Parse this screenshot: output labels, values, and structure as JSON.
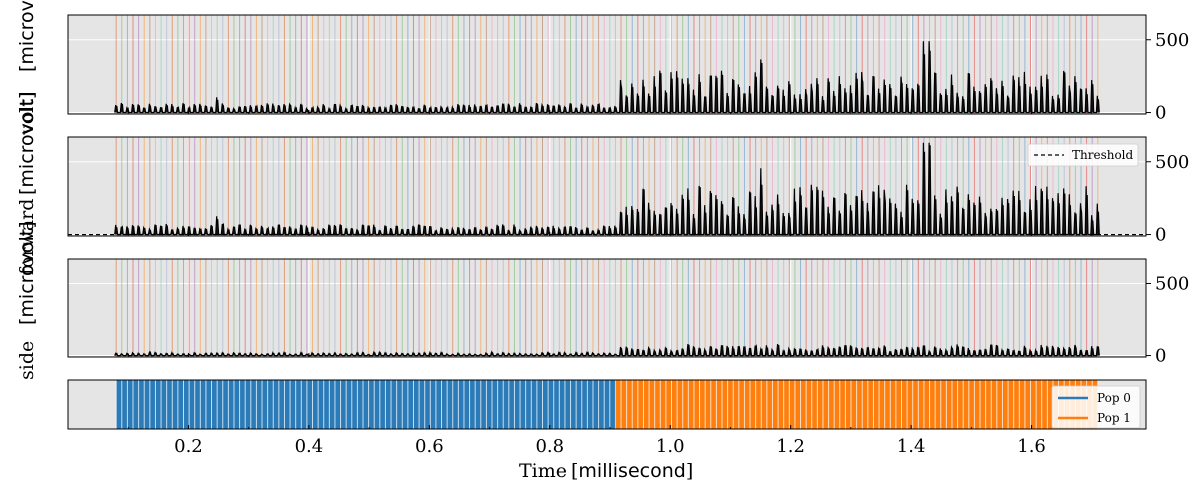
{
  "chart_data": {
    "type": "line",
    "x_axis": {
      "label_text": "Time",
      "label_unit": "millisecond",
      "range": [
        0.0,
        1.79
      ],
      "ticks": [
        0.2,
        0.4,
        0.6,
        0.8,
        1.0,
        1.2,
        1.4,
        1.6
      ],
      "tick_labels": [
        "0.2",
        "0.4",
        "0.6",
        "0.8",
        "1.0",
        "1.2",
        "1.4",
        "1.6"
      ]
    },
    "spike_train": {
      "start": 0.08,
      "end": 1.71,
      "count": 176,
      "population_boundary": 0.91
    },
    "panels": [
      {
        "id": "panel-1",
        "ylim": [
          -10,
          670
        ],
        "yticks": [
          0,
          500
        ],
        "ytick_labels": [
          "0",
          "500"
        ],
        "amplitude_pop0": 45,
        "amplitude_pop1": 200,
        "peaks": [
          {
            "x": 0.245,
            "y": 105
          },
          {
            "x": 1.425,
            "y": 490
          },
          {
            "x": 1.15,
            "y": 365
          }
        ],
        "threshold": null
      },
      {
        "id": "panel-2",
        "ylim": [
          -10,
          670
        ],
        "yticks": [
          0,
          500
        ],
        "ytick_labels": [
          "0",
          "500"
        ],
        "amplitude_pop0": 50,
        "amplitude_pop1": 240,
        "peaks": [
          {
            "x": 0.245,
            "y": 125
          },
          {
            "x": 1.425,
            "y": 630
          },
          {
            "x": 1.15,
            "y": 455
          }
        ],
        "threshold": 0
      },
      {
        "id": "panel-3",
        "ylim": [
          -10,
          670
        ],
        "yticks": [
          0,
          500
        ],
        "ytick_labels": [
          "0",
          "500"
        ],
        "amplitude_pop0": 15,
        "amplitude_pop1": 55,
        "peaks": [],
        "threshold": null
      }
    ],
    "population_panel": {
      "bands": [
        {
          "name": "Pop 0",
          "from": 0.08,
          "to": 0.91,
          "color": "#2b7bb9"
        },
        {
          "name": "Pop 1",
          "from": 0.91,
          "to": 1.71,
          "color": "#ff7f0e"
        }
      ]
    },
    "ylabels": [
      {
        "serif": "forward",
        "sans": "[microvolt]"
      },
      {
        "serif": "side",
        "sans": "[microvolt]"
      },
      {
        "serif": "volt]",
        "sans": "[microvolt]"
      }
    ],
    "legend_threshold": {
      "label": "Threshold",
      "style": "dashed",
      "color": "#000000"
    },
    "legend_pops": [
      {
        "label": "Pop 0",
        "color": "#2b7bb9"
      },
      {
        "label": "Pop 1",
        "color": "#ff7f0e"
      }
    ],
    "grid": true,
    "background": "#e5e5e5",
    "spike_line_colors": [
      "#d94801",
      "#4daf4a",
      "#377eb8",
      "#e41a1c",
      "#984ea3",
      "#ff7f00",
      "#a65628",
      "#f781bf",
      "#66c2a5",
      "#8da0cb"
    ]
  }
}
